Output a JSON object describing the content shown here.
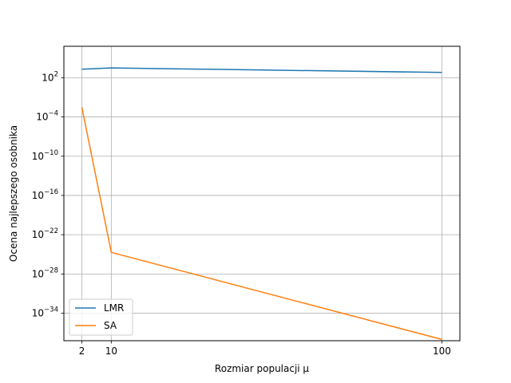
{
  "chart_data": {
    "type": "line",
    "title": "",
    "xlabel": "Rozmiar populacji μ",
    "ylabel": "Ocena najlepszego osobnika",
    "x": [
      2,
      10,
      100
    ],
    "x_ticks": [
      2,
      10,
      100
    ],
    "y_scale": "log",
    "y_tick_exponents": [
      2,
      -4,
      -10,
      -16,
      -22,
      -28,
      -34
    ],
    "xlim": [
      -2.9,
      104.9
    ],
    "ylim_log10": [
      -38.2,
      6.8
    ],
    "grid": true,
    "legend_position": "lower left",
    "series": [
      {
        "name": "LMR",
        "color": "#1f77b4",
        "log10_values": [
          3.3,
          3.5,
          2.8
        ]
      },
      {
        "name": "SA",
        "color": "#ff7f0e",
        "log10_values": [
          -2.5,
          -24.7,
          -38.0
        ]
      }
    ]
  }
}
